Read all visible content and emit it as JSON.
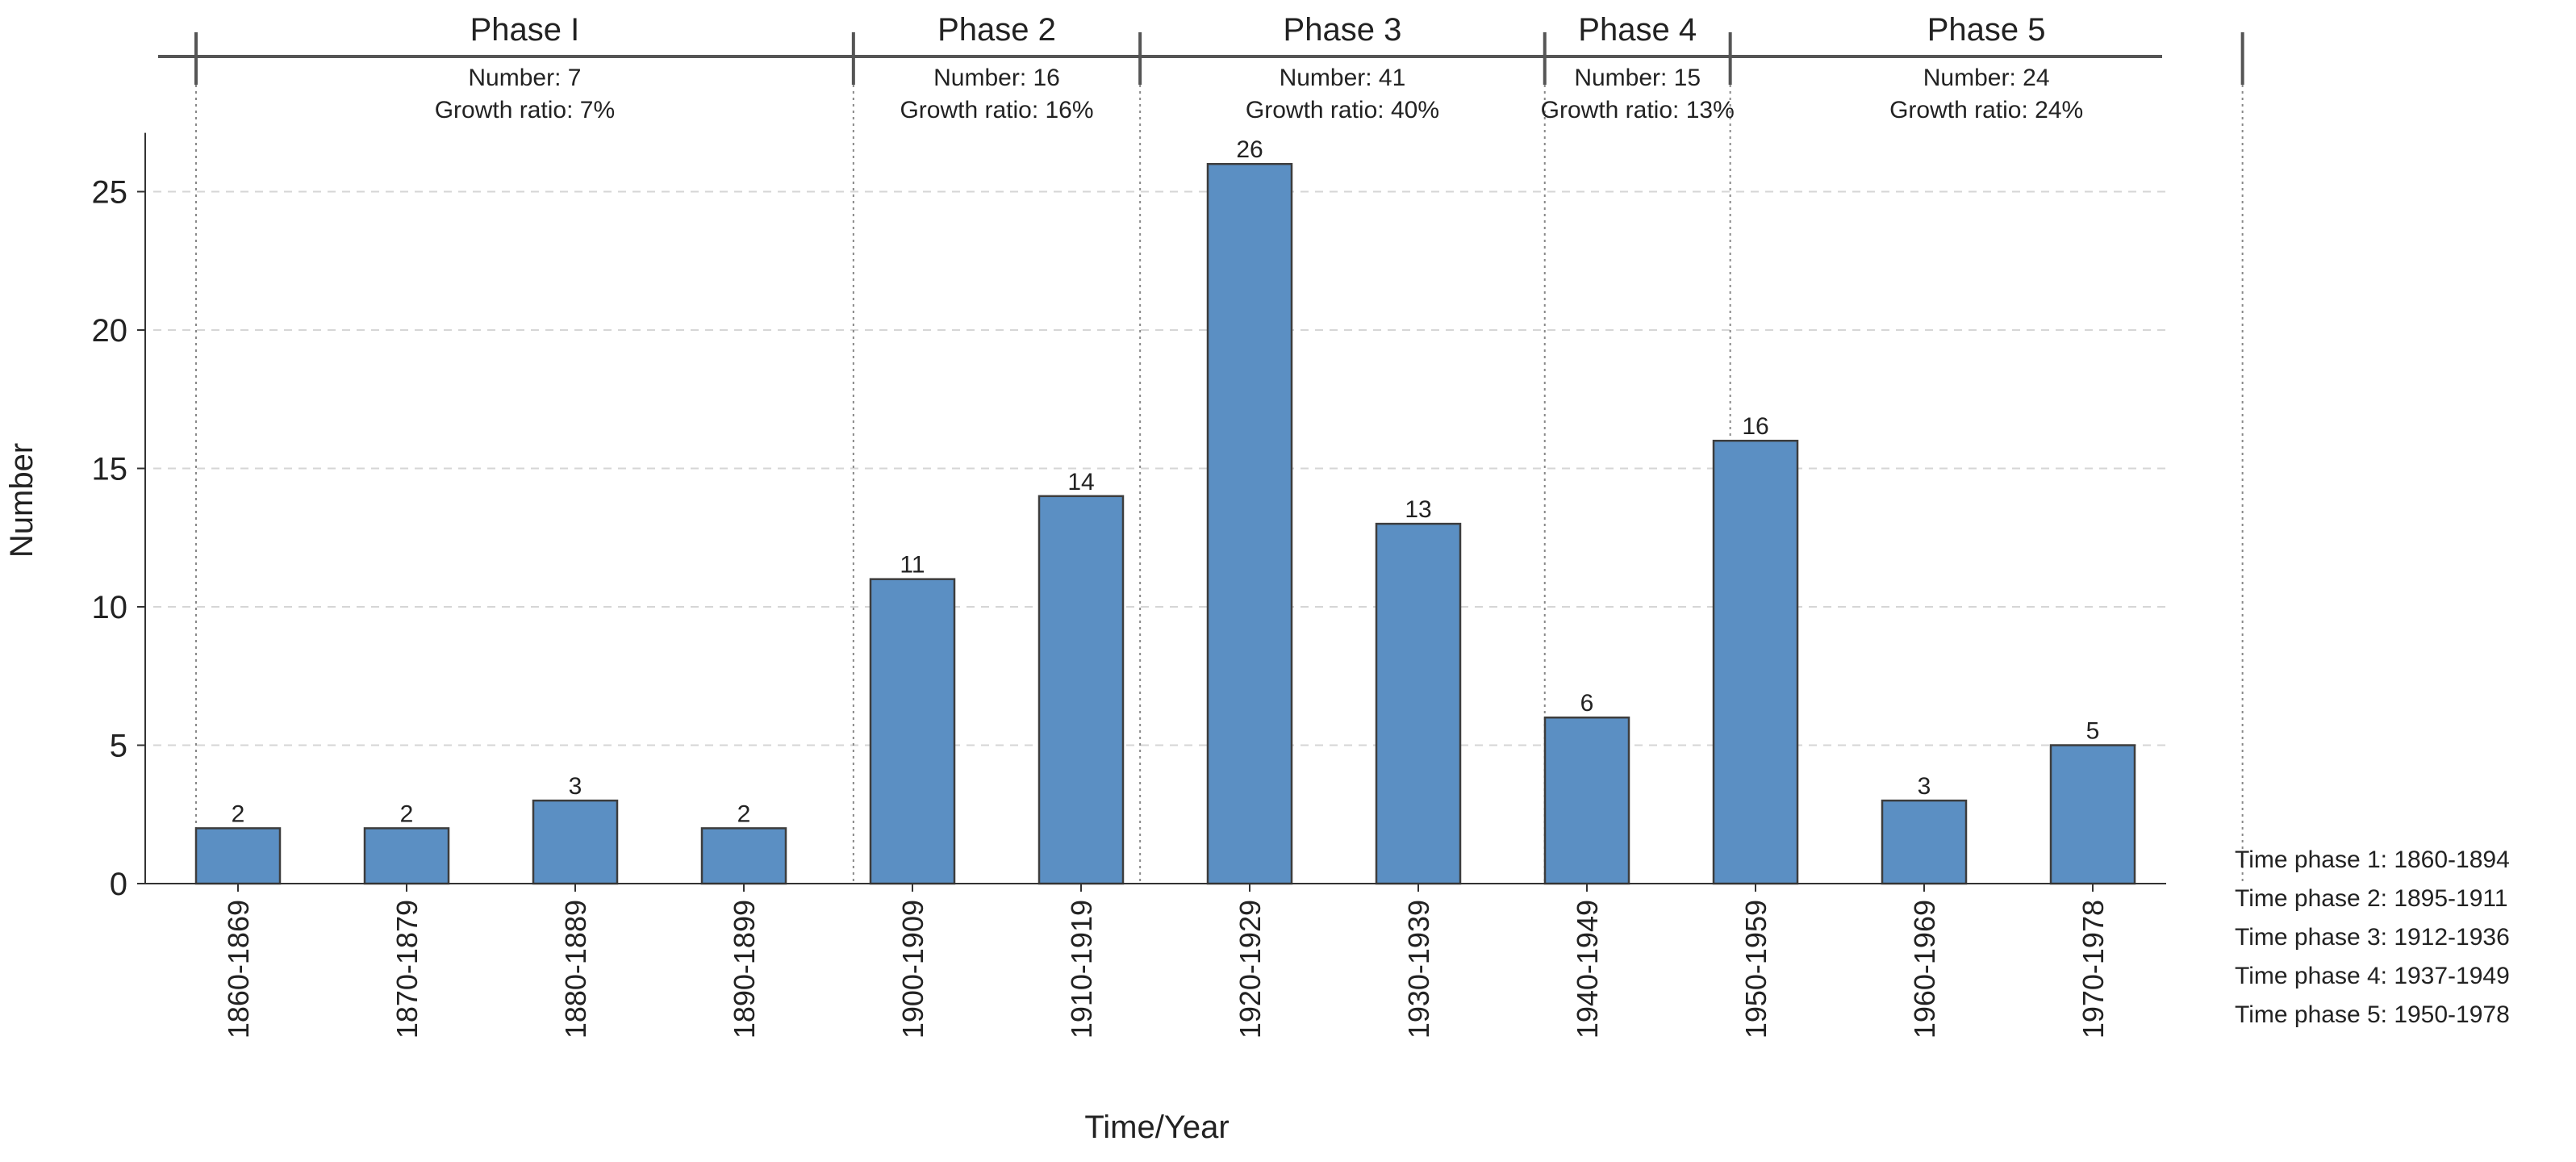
{
  "chart_data": {
    "type": "bar",
    "title": "",
    "xlabel": "Time/Year",
    "ylabel": "Number",
    "ylim": [
      0,
      28
    ],
    "yticks": [
      0,
      5,
      10,
      15,
      20,
      25
    ],
    "grid": "horizontal dashed",
    "bar_color": "#5b8fc3",
    "categories": [
      "1860-1869",
      "1870-1879",
      "1880-1889",
      "1890-1899",
      "1900-1909",
      "1910-1919",
      "1920-1929",
      "1930-1939",
      "1940-1949",
      "1950-1959",
      "1960-1969",
      "1970-1978"
    ],
    "values": [
      2,
      2,
      3,
      2,
      11,
      14,
      26,
      13,
      6,
      16,
      3,
      5
    ],
    "phases": [
      {
        "name": "Phase I",
        "number_text": "Number:  7",
        "growth_text": "Growth ratio:  7%",
        "from_index": 0,
        "to_index": 3.65
      },
      {
        "name": "Phase 2",
        "number_text": "Number:  16",
        "growth_text": "Growth ratio:  16%",
        "from_index": 3.65,
        "to_index": 5.35
      },
      {
        "name": "Phase 3",
        "number_text": "Number:  41",
        "growth_text": "Growth ratio:  40%",
        "from_index": 5.35,
        "to_index": 7.75
      },
      {
        "name": "Phase 4",
        "number_text": "Number:  15",
        "growth_text": "Growth ratio:  13%",
        "from_index": 7.75,
        "to_index": 8.85
      },
      {
        "name": "Phase 5",
        "number_text": "Number:  24",
        "growth_text": "Growth ratio:  24%",
        "from_index": 8.85,
        "to_index": 11.85
      }
    ],
    "legend": [
      "Time phase 1:  1860-1894",
      "Time phase 2:  1895-1911",
      "Time phase 3:  1912-1936",
      "Time phase 4:  1937-1949",
      "Time phase 5:  1950-1978"
    ],
    "legend_position": "bottom-right"
  }
}
